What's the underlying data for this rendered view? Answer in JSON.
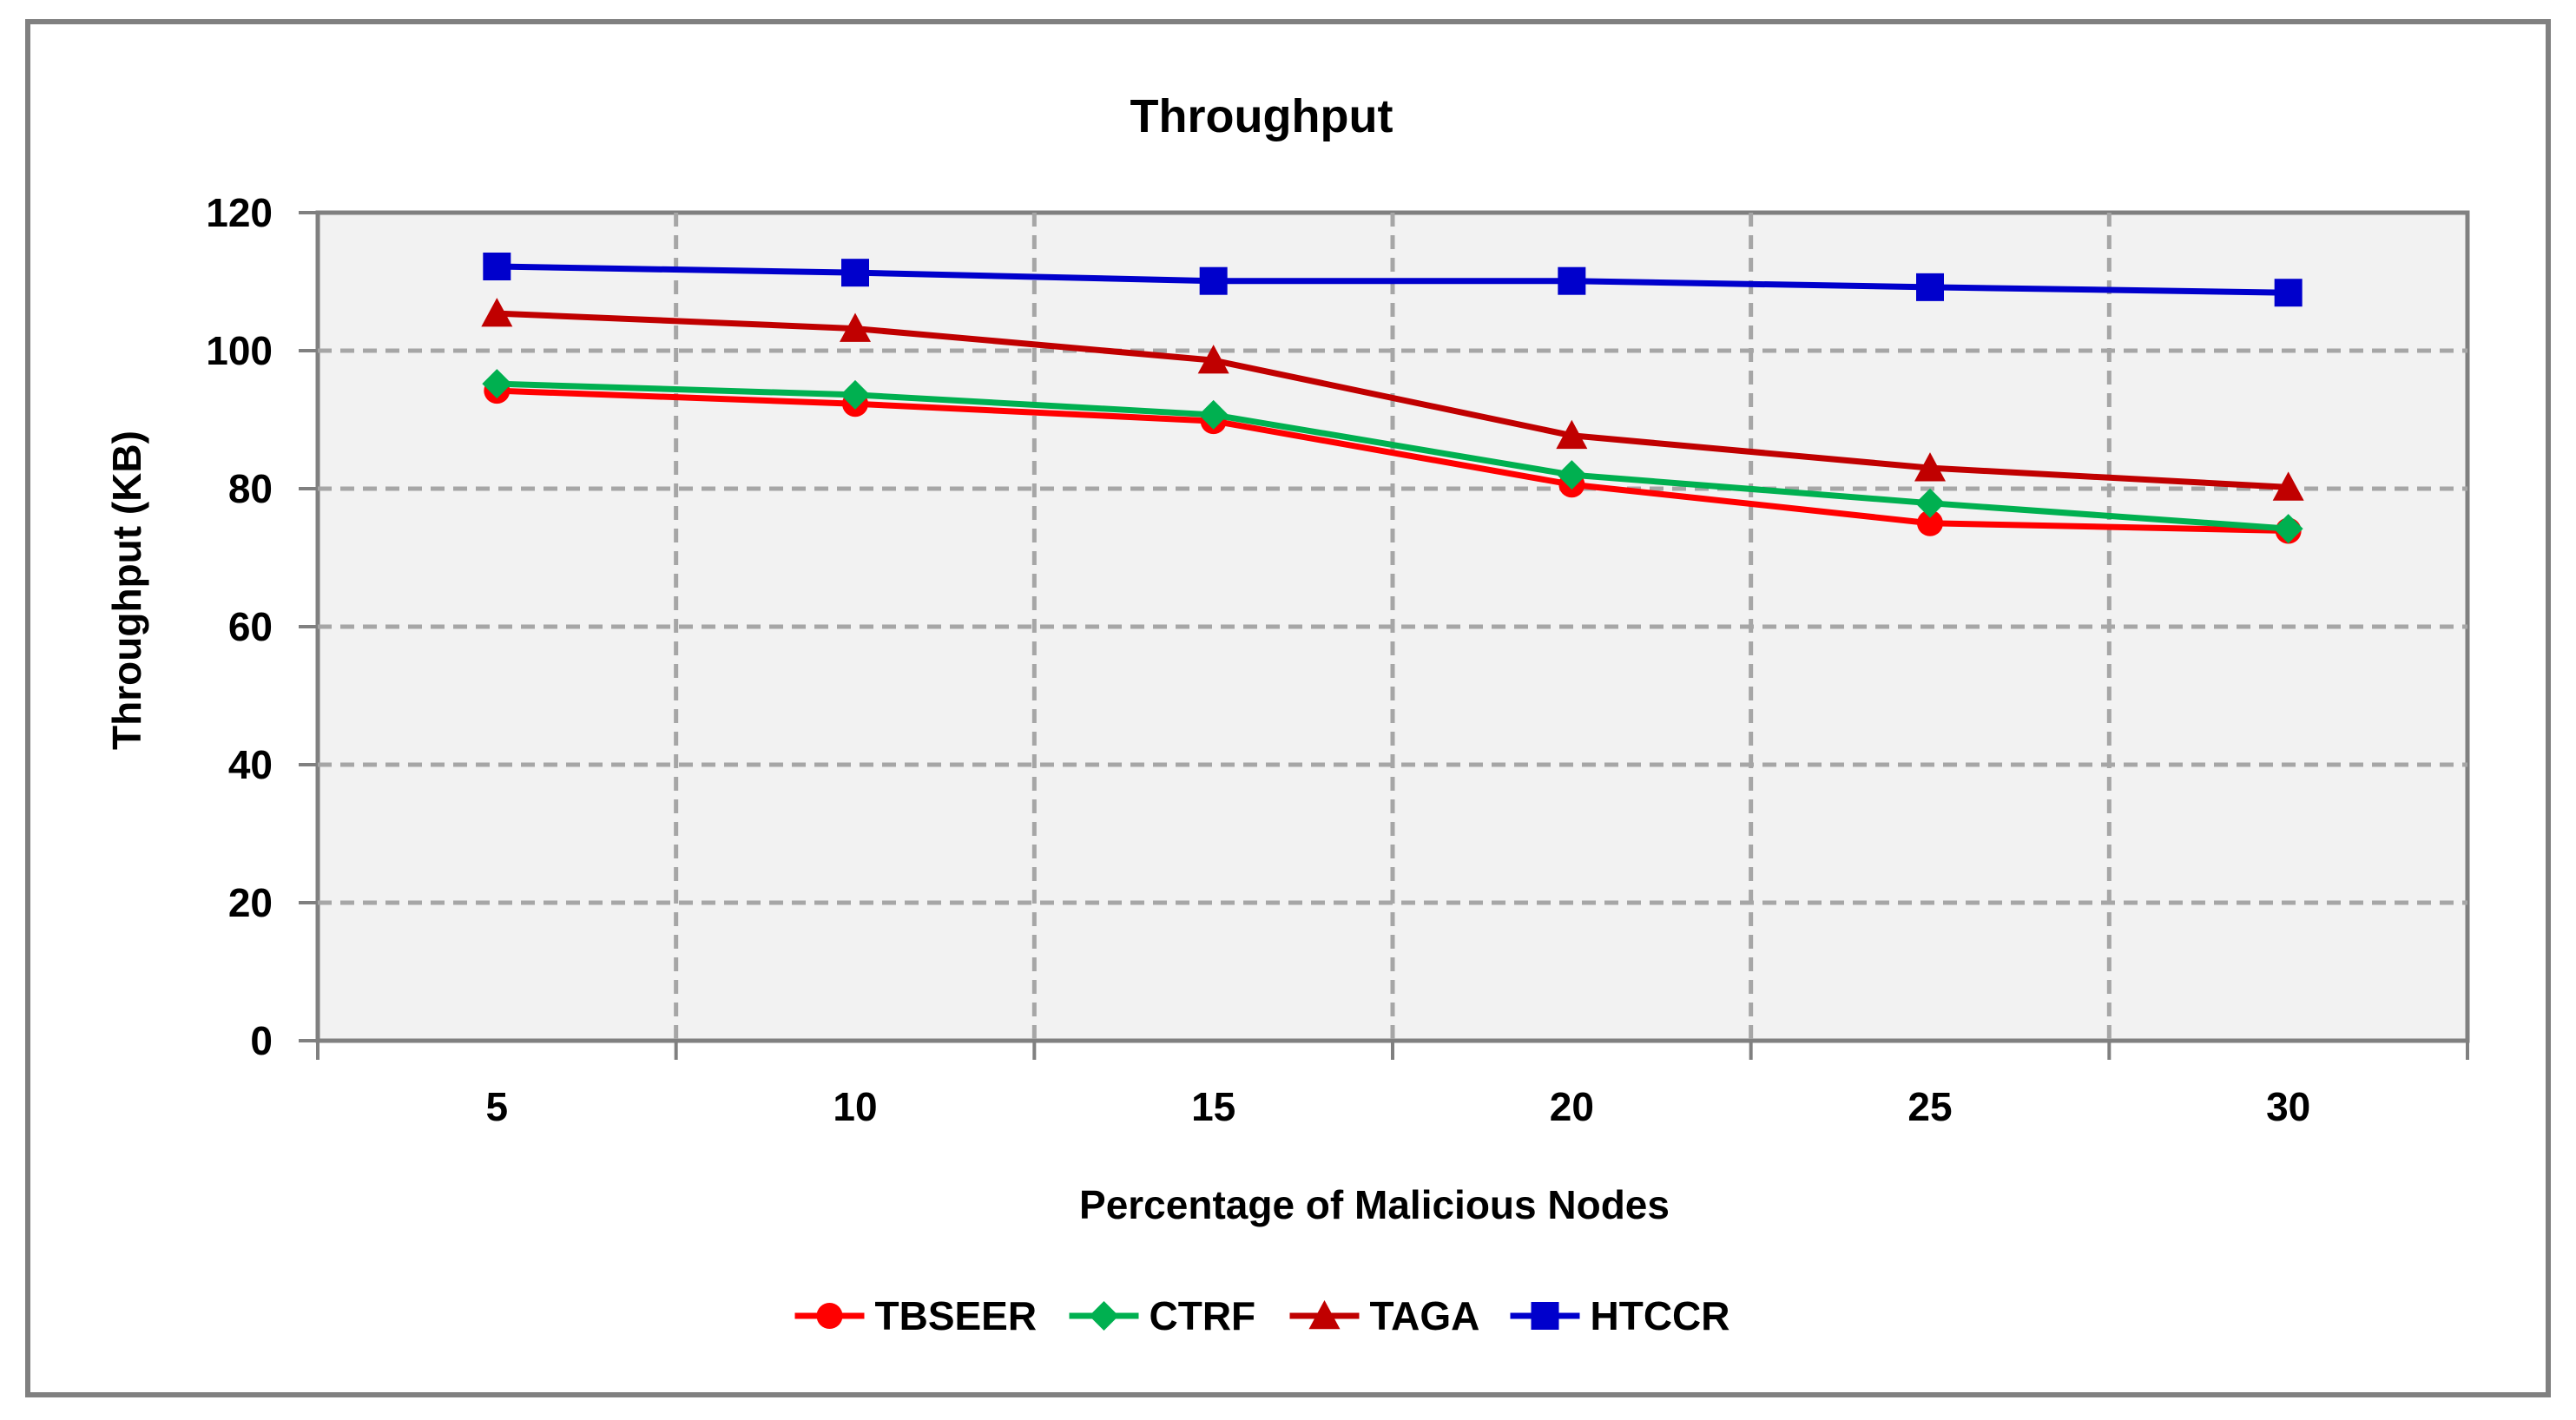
{
  "chart_data": {
    "type": "line",
    "title": "Throughput",
    "xlabel": "Percentage of Malicious Nodes",
    "ylabel": "Throughput (KB)",
    "categories": [
      "5",
      "10",
      "15",
      "20",
      "25",
      "30"
    ],
    "ylim": [
      0,
      120
    ],
    "yticks": [
      0,
      20,
      40,
      60,
      80,
      100,
      120
    ],
    "grid": true,
    "legend_position": "bottom",
    "series": [
      {
        "name": "TBSEER",
        "marker": "circle",
        "color": "#ff0000",
        "values": [
          94.2,
          92.3,
          89.8,
          80.6,
          75.0,
          73.9
        ]
      },
      {
        "name": "CTRF",
        "marker": "diamond",
        "color": "#00b050",
        "values": [
          95.2,
          93.6,
          90.7,
          82.0,
          77.9,
          74.2
        ]
      },
      {
        "name": "TAGA",
        "marker": "triangle",
        "color": "#c00000",
        "values": [
          105.4,
          103.2,
          98.6,
          87.7,
          83.0,
          80.2
        ]
      },
      {
        "name": "HTCCR",
        "marker": "square",
        "color": "#0000cc",
        "values": [
          112.2,
          111.3,
          110.1,
          110.1,
          109.2,
          108.4
        ]
      }
    ]
  }
}
